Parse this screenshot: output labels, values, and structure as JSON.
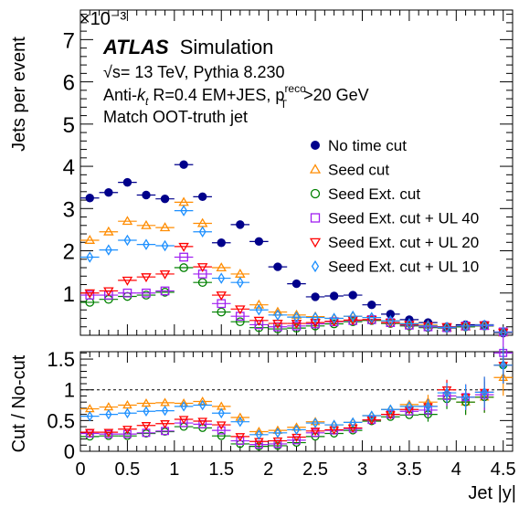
{
  "chart_data": [
    {
      "type": "scatter",
      "panel": "main",
      "ylabel": "Jets per event",
      "y_multiplier": "×10⁻³",
      "ylim": [
        0,
        7.7
      ],
      "xlim": [
        0,
        4.6
      ],
      "yticks": [
        "1",
        "2",
        "3",
        "4",
        "5",
        "6",
        "7"
      ],
      "grid": false,
      "legend_position": "top-right",
      "annotations": {
        "experiment": "ATLAS",
        "label": "Simulation",
        "energy": "√s= 13 TeV, Pythia 8.230",
        "algo_prefix": "Anti-",
        "algo_k": "k",
        "algo_t": "t",
        "algo_rest": " R=0.4 EM+JES, p",
        "pt_sup": "reco",
        "pt_sub": "T",
        "pt_cut": ">20 GeV",
        "match": "Match OOT-truth jet"
      },
      "bin_edges": [
        0,
        0.2,
        0.4,
        0.6,
        0.8,
        1.0,
        1.2,
        1.4,
        1.6,
        1.8,
        2.0,
        2.2,
        2.4,
        2.6,
        2.8,
        3.0,
        3.2,
        3.4,
        3.6,
        3.8,
        4.0,
        4.2,
        4.4,
        4.6
      ],
      "series": [
        {
          "name": "No time cut",
          "color": "#00008b",
          "marker": "circle-filled",
          "values": [
            3.25,
            3.38,
            3.62,
            3.32,
            3.23,
            4.04,
            3.28,
            2.19,
            2.62,
            2.22,
            1.62,
            1.22,
            0.91,
            0.93,
            0.95,
            0.72,
            0.5,
            0.37,
            0.3,
            0.2,
            0.25,
            0.25,
            0.05
          ]
        },
        {
          "name": "Seed cut",
          "color": "#ff8c00",
          "marker": "triangle-up",
          "values": [
            2.25,
            2.45,
            2.7,
            2.6,
            2.55,
            3.15,
            2.65,
            1.6,
            1.45,
            0.72,
            0.55,
            0.48,
            0.44,
            0.4,
            0.45,
            0.42,
            0.34,
            0.28,
            0.24,
            0.18,
            0.2,
            0.22,
            0.06
          ]
        },
        {
          "name": "Seed Ext. cut",
          "color": "#008000",
          "marker": "circle-open",
          "values": [
            0.78,
            0.85,
            0.92,
            0.95,
            1.02,
            1.6,
            1.25,
            0.55,
            0.32,
            0.18,
            0.15,
            0.17,
            0.22,
            0.27,
            0.32,
            0.35,
            0.28,
            0.22,
            0.18,
            0.17,
            0.2,
            0.22,
            0.07
          ]
        },
        {
          "name": "Seed Ext. cut + UL 40",
          "color": "#a020f0",
          "marker": "square-open",
          "values": [
            0.95,
            0.95,
            1.0,
            1.0,
            1.05,
            1.85,
            1.45,
            0.75,
            0.45,
            0.25,
            0.2,
            0.22,
            0.27,
            0.32,
            0.35,
            0.37,
            0.3,
            0.24,
            0.2,
            0.18,
            0.22,
            0.23,
            0.08
          ]
        },
        {
          "name": "Seed Ext. cut + UL 20",
          "color": "#ff0000",
          "marker": "triangle-down",
          "values": [
            1.0,
            1.05,
            1.3,
            1.38,
            1.45,
            2.1,
            1.62,
            0.95,
            0.62,
            0.35,
            0.28,
            0.28,
            0.3,
            0.33,
            0.36,
            0.37,
            0.3,
            0.25,
            0.22,
            0.2,
            0.22,
            0.24,
            0.07
          ]
        },
        {
          "name": "Seed Ext. cut + UL 10",
          "color": "#1e90ff",
          "marker": "diamond-open",
          "values": [
            1.85,
            2.02,
            2.25,
            2.15,
            2.12,
            2.95,
            2.45,
            1.35,
            1.25,
            0.6,
            0.48,
            0.43,
            0.42,
            0.4,
            0.45,
            0.42,
            0.34,
            0.27,
            0.22,
            0.19,
            0.22,
            0.24,
            0.07
          ]
        }
      ]
    },
    {
      "type": "scatter",
      "panel": "ratio",
      "ylabel": "Cut / No-cut",
      "xlabel": "Jet |y|",
      "ylim": [
        0,
        1.62
      ],
      "xlim": [
        0,
        4.6
      ],
      "yticks": [
        "0",
        "0.5",
        "1",
        "1.5"
      ],
      "xticks": [
        "0",
        "0.5",
        "1",
        "1.5",
        "2",
        "2.5",
        "3",
        "3.5",
        "4",
        "4.5"
      ],
      "reference_line": 1,
      "series": [
        {
          "name": "Seed cut",
          "values": [
            0.69,
            0.72,
            0.75,
            0.78,
            0.79,
            0.78,
            0.81,
            0.73,
            0.55,
            0.32,
            0.34,
            0.39,
            0.48,
            0.43,
            0.47,
            0.58,
            0.68,
            0.76,
            0.8,
            0.9,
            0.8,
            0.88,
            1.2
          ]
        },
        {
          "name": "Seed Ext. cut",
          "values": [
            0.24,
            0.25,
            0.25,
            0.29,
            0.32,
            0.4,
            0.38,
            0.25,
            0.12,
            0.08,
            0.09,
            0.14,
            0.24,
            0.29,
            0.34,
            0.49,
            0.56,
            0.59,
            0.6,
            0.85,
            0.8,
            0.88,
            1.4
          ]
        },
        {
          "name": "Seed Ext. cut + UL 40",
          "values": [
            0.29,
            0.28,
            0.28,
            0.3,
            0.33,
            0.46,
            0.44,
            0.34,
            0.17,
            0.11,
            0.12,
            0.18,
            0.3,
            0.34,
            0.37,
            0.51,
            0.6,
            0.65,
            0.67,
            0.9,
            0.88,
            0.92,
            1.6
          ]
        },
        {
          "name": "Seed Ext. cut + UL 20",
          "values": [
            0.31,
            0.31,
            0.36,
            0.42,
            0.45,
            0.52,
            0.49,
            0.43,
            0.24,
            0.16,
            0.17,
            0.23,
            0.33,
            0.35,
            0.38,
            0.51,
            0.6,
            0.68,
            0.73,
            1.0,
            0.88,
            0.96,
            1.4
          ]
        },
        {
          "name": "Seed Ext. cut + UL 10",
          "values": [
            0.57,
            0.6,
            0.62,
            0.65,
            0.66,
            0.73,
            0.75,
            0.62,
            0.48,
            0.27,
            0.3,
            0.35,
            0.46,
            0.43,
            0.47,
            0.58,
            0.68,
            0.73,
            0.73,
            0.95,
            0.88,
            0.96,
            1.4
          ]
        }
      ]
    }
  ]
}
